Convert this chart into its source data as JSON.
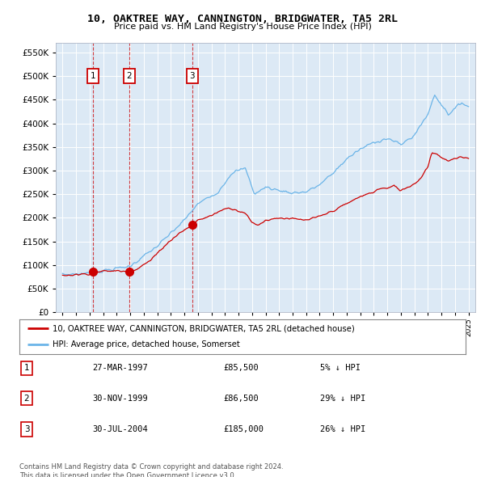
{
  "title": "10, OAKTREE WAY, CANNINGTON, BRIDGWATER, TA5 2RL",
  "subtitle": "Price paid vs. HM Land Registry's House Price Index (HPI)",
  "hpi_color": "#6ab4e8",
  "price_color": "#cc0000",
  "plot_bg_color": "#dce9f5",
  "purchases": [
    {
      "date": 1997.23,
      "price": 85500,
      "label": "1"
    },
    {
      "date": 1999.92,
      "price": 86500,
      "label": "2"
    },
    {
      "date": 2004.58,
      "price": 185000,
      "label": "3"
    }
  ],
  "table_rows": [
    {
      "num": "1",
      "date": "27-MAR-1997",
      "price": "£85,500",
      "hpi": "5% ↓ HPI"
    },
    {
      "num": "2",
      "date": "30-NOV-1999",
      "price": "£86,500",
      "hpi": "29% ↓ HPI"
    },
    {
      "num": "3",
      "date": "30-JUL-2004",
      "price": "£185,000",
      "hpi": "26% ↓ HPI"
    }
  ],
  "legend_entries": [
    {
      "label": "10, OAKTREE WAY, CANNINGTON, BRIDGWATER, TA5 2RL (detached house)",
      "color": "#cc0000"
    },
    {
      "label": "HPI: Average price, detached house, Somerset",
      "color": "#6ab4e8"
    }
  ],
  "footer": "Contains HM Land Registry data © Crown copyright and database right 2024.\nThis data is licensed under the Open Government Licence v3.0.",
  "ylim": [
    0,
    570000
  ],
  "yticks": [
    0,
    50000,
    100000,
    150000,
    200000,
    250000,
    300000,
    350000,
    400000,
    450000,
    500000,
    550000
  ],
  "xlim": [
    1994.5,
    2025.5
  ],
  "xticks": [
    1995,
    1996,
    1997,
    1998,
    1999,
    2000,
    2001,
    2002,
    2003,
    2004,
    2005,
    2006,
    2007,
    2008,
    2009,
    2010,
    2011,
    2012,
    2013,
    2014,
    2015,
    2016,
    2017,
    2018,
    2019,
    2020,
    2021,
    2022,
    2023,
    2024,
    2025
  ]
}
